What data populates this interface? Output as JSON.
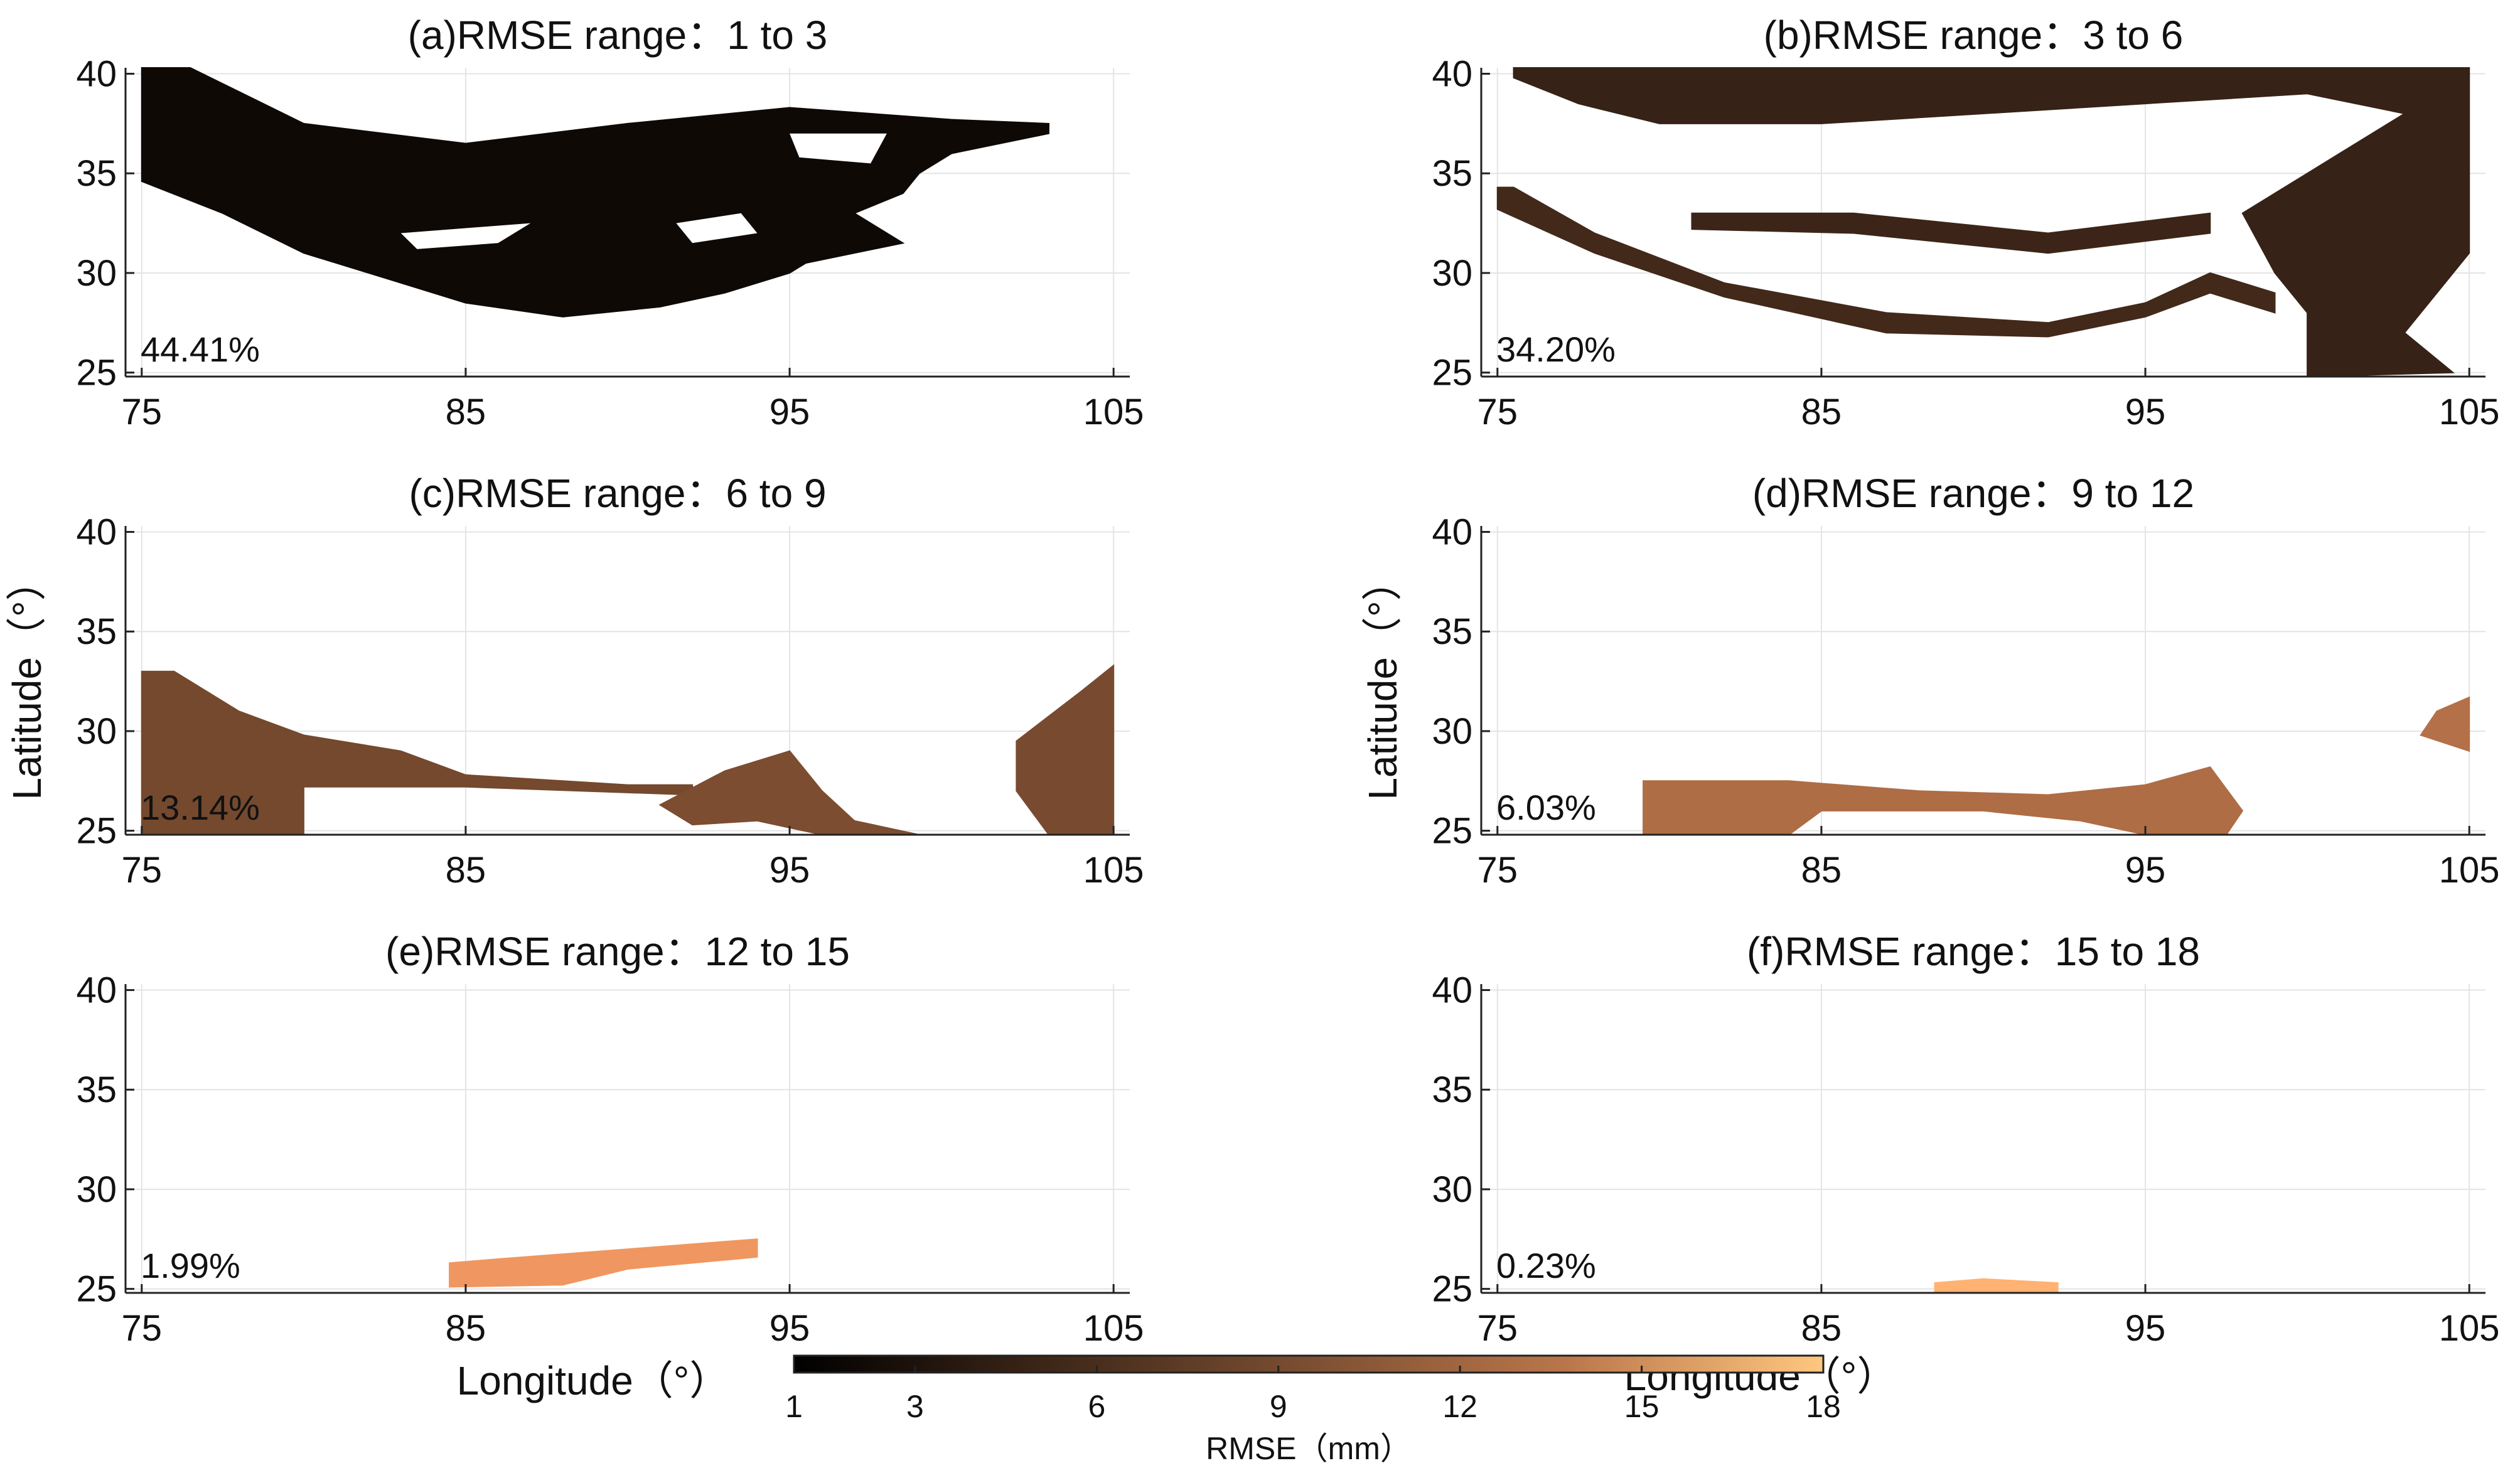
{
  "chart_data": {
    "type": "heatmap",
    "colormap": "copper",
    "x_label": "Longitude（°）",
    "y_label": "Latitude（°）",
    "xlim": [
      74.5,
      105.5
    ],
    "ylim": [
      24.8,
      40.3
    ],
    "x_ticks": [
      "75",
      "85",
      "95",
      "105"
    ],
    "y_ticks": [
      "40",
      "35",
      "30",
      "25"
    ],
    "colorbar": {
      "range": [
        1,
        18
      ],
      "ticks": [
        "1",
        "3",
        "6",
        "9",
        "12",
        "15",
        "18"
      ],
      "label": "RMSE（mm）"
    },
    "panels": [
      {
        "title": "(a)RMSE range：1 to 3",
        "percent": "44.41%",
        "rmse_range": [
          1,
          3
        ],
        "show_ylabel": false,
        "show_xlabel": false,
        "regions": [
          {
            "value": 1.8,
            "points": [
              [
                75,
                40.3
              ],
              [
                76.5,
                40.3
              ],
              [
                80,
                37.5
              ],
              [
                85,
                36.5
              ],
              [
                90,
                37.5
              ],
              [
                95,
                38.3
              ],
              [
                100,
                37.7
              ],
              [
                103,
                37.5
              ],
              [
                103,
                37
              ],
              [
                100,
                36
              ],
              [
                99,
                35
              ],
              [
                98.5,
                34
              ],
              [
                97,
                33
              ],
              [
                98.5,
                31.5
              ],
              [
                97,
                31
              ],
              [
                95.5,
                30.5
              ],
              [
                95,
                30
              ],
              [
                93,
                29
              ],
              [
                91,
                28.3
              ],
              [
                88,
                27.8
              ],
              [
                85,
                28.5
              ],
              [
                83,
                29.5
              ],
              [
                80,
                31
              ],
              [
                77.5,
                33
              ],
              [
                75,
                34.6
              ]
            ]
          }
        ],
        "holes": [
          {
            "points": [
              [
                95,
                37
              ],
              [
                98,
                37
              ],
              [
                97.5,
                35.5
              ],
              [
                95.3,
                35.8
              ]
            ]
          },
          {
            "points": [
              [
                83,
                32
              ],
              [
                87,
                32.5
              ],
              [
                86,
                31.5
              ],
              [
                83.5,
                31.2
              ]
            ]
          },
          {
            "points": [
              [
                91.5,
                32.5
              ],
              [
                93.5,
                33
              ],
              [
                94,
                32
              ],
              [
                92,
                31.5
              ]
            ]
          }
        ]
      },
      {
        "title": "(b)RMSE range：3 to 6",
        "percent": "34.20%",
        "rmse_range": [
          3,
          6
        ],
        "show_ylabel": false,
        "show_xlabel": false,
        "regions": [
          {
            "value": 3.9,
            "points": [
              [
                75.5,
                40.3
              ],
              [
                105,
                40.3
              ],
              [
                105,
                31
              ],
              [
                104,
                29
              ],
              [
                103,
                27
              ],
              [
                104.5,
                25
              ],
              [
                100,
                24.8
              ],
              [
                100,
                28
              ],
              [
                99,
                30
              ],
              [
                98,
                33
              ],
              [
                99,
                34
              ],
              [
                101,
                36
              ],
              [
                103,
                38
              ],
              [
                100,
                39
              ],
              [
                95,
                38.5
              ],
              [
                90,
                38
              ],
              [
                85,
                37.5
              ],
              [
                80,
                37.5
              ],
              [
                77.5,
                38.5
              ],
              [
                75.5,
                39.8
              ]
            ]
          },
          {
            "value": 4.5,
            "points": [
              [
                75,
                34.3
              ],
              [
                75.5,
                34.3
              ],
              [
                78,
                32
              ],
              [
                82,
                29.5
              ],
              [
                87,
                28
              ],
              [
                92,
                27.5
              ],
              [
                95,
                28.5
              ],
              [
                97,
                30
              ],
              [
                99,
                29
              ],
              [
                99,
                28
              ],
              [
                97,
                29
              ],
              [
                95,
                27.8
              ],
              [
                92,
                26.8
              ],
              [
                87,
                27
              ],
              [
                82,
                28.8
              ],
              [
                78,
                31
              ],
              [
                75,
                33.2
              ]
            ]
          },
          {
            "value": 4.2,
            "points": [
              [
                81,
                33
              ],
              [
                86,
                33
              ],
              [
                92,
                32
              ],
              [
                97,
                33
              ],
              [
                97,
                32
              ],
              [
                92,
                31
              ],
              [
                86,
                32
              ],
              [
                81,
                32.2
              ]
            ]
          }
        ],
        "holes": []
      },
      {
        "title": "(c)RMSE range：6 to 9",
        "percent": "13.14%",
        "rmse_range": [
          6,
          9
        ],
        "show_ylabel": true,
        "show_xlabel": false,
        "regions": [
          {
            "value": 7.2,
            "points": [
              [
                75,
                33
              ],
              [
                76,
                33
              ],
              [
                78,
                31
              ],
              [
                80,
                29.8
              ],
              [
                83,
                29
              ],
              [
                85,
                27.8
              ],
              [
                90,
                27.3
              ],
              [
                92,
                27.3
              ],
              [
                92,
                26.8
              ],
              [
                85,
                27.2
              ],
              [
                80,
                27.2
              ],
              [
                80,
                24.8
              ],
              [
                75,
                24.8
              ]
            ]
          },
          {
            "value": 7.6,
            "points": [
              [
                91,
                26.3
              ],
              [
                93,
                28
              ],
              [
                95,
                29
              ],
              [
                96,
                27
              ],
              [
                97,
                25.5
              ],
              [
                99,
                24.8
              ],
              [
                96,
                24.8
              ],
              [
                94,
                25.5
              ],
              [
                92,
                25.3
              ]
            ]
          },
          {
            "value": 7.4,
            "points": [
              [
                102,
                29.5
              ],
              [
                104,
                32
              ],
              [
                105,
                33.3
              ],
              [
                105,
                24.8
              ],
              [
                103,
                24.8
              ],
              [
                102,
                27
              ]
            ]
          }
        ],
        "holes": []
      },
      {
        "title": "(d)RMSE range：9 to 12",
        "percent": "6.03%",
        "rmse_range": [
          9,
          12
        ],
        "show_ylabel": true,
        "show_xlabel": false,
        "regions": [
          {
            "value": 10.3,
            "points": [
              [
                79.5,
                24.8
              ],
              [
                79.5,
                27.5
              ],
              [
                84,
                27.5
              ],
              [
                88,
                27
              ],
              [
                92,
                26.8
              ],
              [
                95,
                27.3
              ],
              [
                97,
                28.2
              ],
              [
                98,
                26
              ],
              [
                97.5,
                24.8
              ],
              [
                95,
                24.8
              ],
              [
                93,
                25.5
              ],
              [
                90,
                26
              ],
              [
                85,
                26
              ],
              [
                84,
                24.8
              ]
            ]
          },
          {
            "value": 10.6,
            "points": [
              [
                104,
                31
              ],
              [
                105,
                31.7
              ],
              [
                105,
                29
              ],
              [
                103.5,
                29.8
              ]
            ]
          }
        ],
        "holes": []
      },
      {
        "title": "(e)RMSE range：12 to 15",
        "percent": "1.99%",
        "rmse_range": [
          12,
          15
        ],
        "show_ylabel": false,
        "show_xlabel": true,
        "regions": [
          {
            "value": 13.8,
            "points": [
              [
                84.5,
                26.3
              ],
              [
                86,
                26.5
              ],
              [
                90,
                27
              ],
              [
                94,
                27.5
              ],
              [
                94,
                26.6
              ],
              [
                90,
                26
              ],
              [
                88,
                25.2
              ],
              [
                84.5,
                25.1
              ]
            ]
          }
        ],
        "holes": []
      },
      {
        "title": "(f)RMSE range：15 to 18",
        "percent": "0.23%",
        "rmse_range": [
          15,
          18
        ],
        "show_ylabel": false,
        "show_xlabel": true,
        "regions": [
          {
            "value": 16.2,
            "points": [
              [
                88.5,
                24.8
              ],
              [
                88.5,
                25.3
              ],
              [
                90,
                25.5
              ],
              [
                92.3,
                25.3
              ],
              [
                92.3,
                24.8
              ]
            ]
          }
        ],
        "holes": []
      }
    ]
  }
}
